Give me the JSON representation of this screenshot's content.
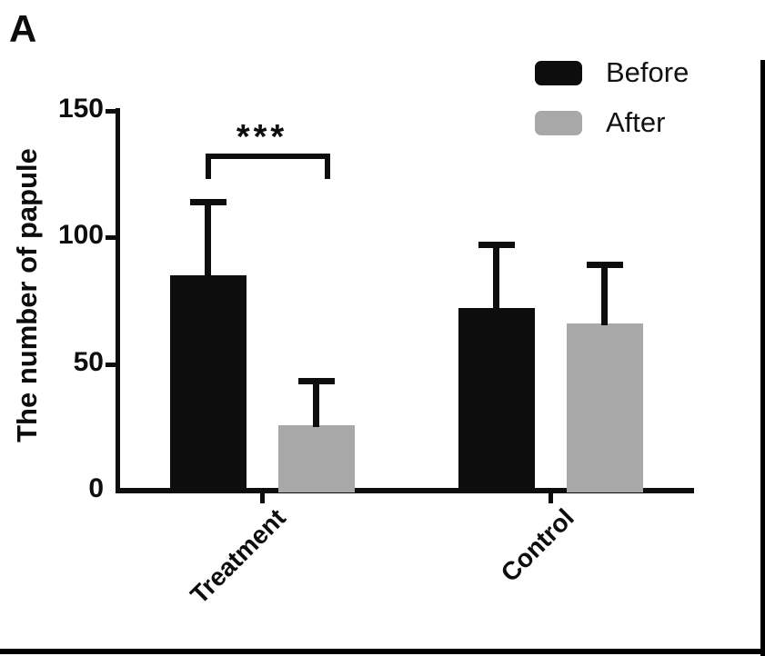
{
  "panel_label": "A",
  "colors": {
    "before": "#0d0d0d",
    "after": "#a8a8a8",
    "axis": "#0d0d0d",
    "background": "#ffffff",
    "frame": "#000000"
  },
  "chart_data": {
    "type": "bar",
    "title": "",
    "xlabel": "",
    "ylabel": "The number of papule",
    "categories": [
      "Treatment",
      "Control"
    ],
    "series": [
      {
        "name": "Before",
        "color": "#0d0d0d",
        "values": [
          85,
          72
        ],
        "error_upper": [
          115,
          98
        ]
      },
      {
        "name": "After",
        "color": "#a8a8a8",
        "values": [
          26,
          66
        ],
        "error_upper": [
          44,
          90
        ]
      }
    ],
    "ylim": [
      0,
      150
    ],
    "yticks": [
      0,
      50,
      100,
      150
    ],
    "grid": false,
    "legend_position": "top-right",
    "significance": {
      "label": "***",
      "category": "Treatment",
      "between": [
        "Before",
        "After"
      ]
    }
  },
  "legend": {
    "items": [
      {
        "label": "Before",
        "color": "#0d0d0d"
      },
      {
        "label": "After",
        "color": "#a8a8a8"
      }
    ]
  }
}
